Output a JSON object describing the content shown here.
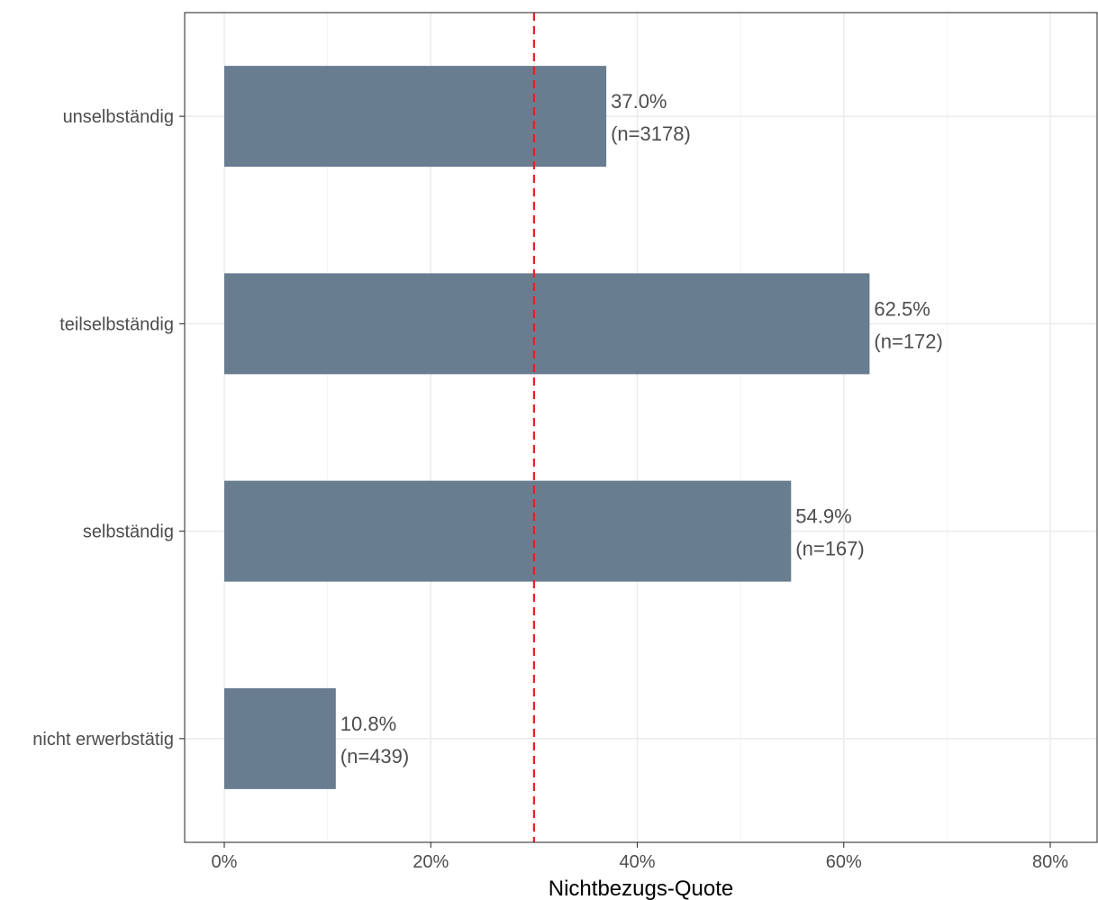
{
  "chart_data": {
    "type": "bar",
    "orientation": "horizontal",
    "categories": [
      "unselbständig",
      "teilselbständig",
      "selbständig",
      "nicht erwerbstätig"
    ],
    "values": [
      37.0,
      62.5,
      54.9,
      10.8
    ],
    "value_labels": [
      "37.0%",
      "62.5%",
      "54.9%",
      "10.8%"
    ],
    "n_labels": [
      "(n=3178)",
      "(n=172)",
      "(n=167)",
      "(n=439)"
    ],
    "xlabel": "Nichtbezugs-Quote",
    "ylabel": "",
    "xlim": [
      0,
      80
    ],
    "x_ticks": [
      0,
      20,
      40,
      60,
      80
    ],
    "x_tick_labels": [
      "0%",
      "20%",
      "40%",
      "60%",
      "80%"
    ],
    "reference_line": {
      "value": 30,
      "style": "dashed",
      "color": "#ee1c25"
    },
    "bar_color": "#687d8f",
    "grid": true
  }
}
